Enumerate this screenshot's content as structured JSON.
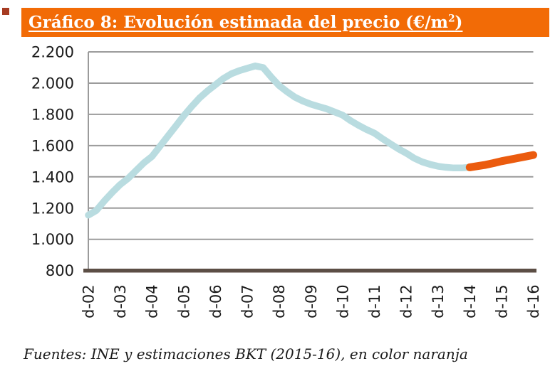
{
  "header": {
    "accent_square_color": "#A63B22",
    "bar_color": "#F26B06",
    "title_prefix": "Gráfico 8: Evolución estimada del precio (€/m",
    "title_sup": "2",
    "title_suffix": ")",
    "text_color": "#ffffff"
  },
  "footer": {
    "text": "Fuentes: INE y estimaciones BKT (2015-16), en color naranja"
  },
  "chart_data": {
    "type": "line",
    "title": "Gráfico 8: Evolución estimada del precio (€/m2)",
    "xlabel": "",
    "ylabel": "€/m2",
    "ylim": [
      800,
      2200
    ],
    "ytick_step": 200,
    "yticks_labels": [
      "2.200",
      "2.000",
      "1.800",
      "1.600",
      "1.400",
      "1.200",
      "1.000",
      "800"
    ],
    "x_labels": [
      "d-02",
      "d-03",
      "d-04",
      "d-05",
      "d-06",
      "d-07",
      "d-08",
      "d-09",
      "d-10",
      "d-11",
      "d-12",
      "d-13",
      "d-14",
      "d-15",
      "d-16"
    ],
    "points_per_interval": 4,
    "grid": true,
    "legend_position": "none",
    "axis_colors": {
      "grid": "#9B9B9B",
      "baseline": "#5C4E45",
      "text": "#1C1C1C"
    },
    "series": [
      {
        "name": "INE",
        "color": "#B9DCE0",
        "start_quarter": 0,
        "values": [
          1155,
          1185,
          1245,
          1300,
          1350,
          1390,
          1440,
          1490,
          1530,
          1595,
          1660,
          1725,
          1790,
          1850,
          1905,
          1950,
          1990,
          2030,
          2060,
          2080,
          2095,
          2110,
          2100,
          2040,
          1985,
          1945,
          1910,
          1885,
          1865,
          1850,
          1835,
          1815,
          1795,
          1760,
          1730,
          1703,
          1680,
          1645,
          1612,
          1580,
          1552,
          1520,
          1496,
          1480,
          1468,
          1461,
          1457,
          1457,
          1461
        ]
      },
      {
        "name": "Estimaciones BKT (2015-16)",
        "color": "#EB5B0E",
        "start_quarter": 48,
        "values": [
          1461,
          1469,
          1477,
          1488,
          1500,
          1510,
          1520,
          1530,
          1540
        ]
      }
    ]
  }
}
